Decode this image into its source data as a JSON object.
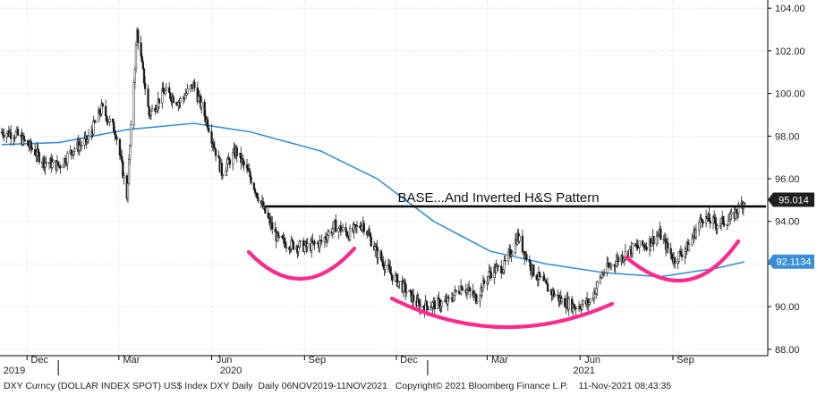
{
  "chart_data": {
    "type": "candlestick-line",
    "annotation": "BASE...And Inverted H&S Pattern",
    "y_ticks": [
      "104.00",
      "102.00",
      "100.00",
      "98.00",
      "96.00",
      "94.00",
      "92.00",
      "90.00",
      "88.00"
    ],
    "y_tick_values": [
      104,
      102,
      100,
      98,
      96,
      94,
      92,
      90,
      88
    ],
    "ylim": [
      87.7,
      104.3
    ],
    "x_month_labels": [
      "Dec",
      "Mar",
      "Jun",
      "Sep",
      "Dec",
      "Mar",
      "Jun",
      "Sep"
    ],
    "x_year_labels": [
      "2019",
      "2020",
      "2021"
    ],
    "series": [
      {
        "name": "DXY Daily",
        "x": [
          "2019-11-06",
          "2019-11-20",
          "2019-12-04",
          "2019-12-18",
          "2020-01-02",
          "2020-01-16",
          "2020-01-30",
          "2020-02-13",
          "2020-02-27",
          "2020-03-09",
          "2020-03-19",
          "2020-03-31",
          "2020-04-15",
          "2020-04-30",
          "2020-05-14",
          "2020-05-28",
          "2020-06-11",
          "2020-06-25",
          "2020-07-09",
          "2020-07-23",
          "2020-08-06",
          "2020-08-20",
          "2020-09-03",
          "2020-09-17",
          "2020-10-01",
          "2020-10-15",
          "2020-10-29",
          "2020-11-12",
          "2020-11-26",
          "2020-12-10",
          "2020-12-24",
          "2021-01-07",
          "2021-01-21",
          "2021-02-04",
          "2021-02-18",
          "2021-03-04",
          "2021-03-18",
          "2021-03-31",
          "2021-04-15",
          "2021-04-29",
          "2021-05-13",
          "2021-05-27",
          "2021-06-10",
          "2021-06-24",
          "2021-07-08",
          "2021-07-22",
          "2021-08-05",
          "2021-08-19",
          "2021-09-02",
          "2021-09-16",
          "2021-09-30",
          "2021-10-14",
          "2021-10-28",
          "2021-11-11"
        ],
        "values": [
          98.2,
          98.1,
          97.5,
          96.8,
          96.6,
          97.4,
          97.8,
          99.3,
          98.2,
          95.2,
          102.9,
          99.0,
          100.1,
          99.6,
          100.4,
          98.6,
          96.3,
          97.3,
          96.1,
          94.5,
          93.1,
          92.9,
          92.8,
          93.0,
          93.8,
          93.4,
          93.9,
          92.5,
          91.5,
          90.8,
          90.0,
          90.1,
          90.2,
          91.0,
          90.4,
          91.6,
          91.9,
          93.3,
          91.7,
          90.9,
          90.3,
          90.0,
          90.2,
          91.6,
          92.2,
          92.7,
          92.9,
          93.4,
          92.2,
          92.8,
          94.2,
          93.9,
          94.1,
          95.0
        ]
      },
      {
        "name": "Moving average",
        "x": [
          "2019-11-06",
          "2020-01-02",
          "2020-03-09",
          "2020-05-14",
          "2020-07-09",
          "2020-09-17",
          "2020-11-12",
          "2021-01-07",
          "2021-03-04",
          "2021-04-29",
          "2021-06-24",
          "2021-08-19",
          "2021-10-14",
          "2021-11-11"
        ],
        "values": [
          97.6,
          97.7,
          98.3,
          98.6,
          98.2,
          97.3,
          96.0,
          94.0,
          92.6,
          92.0,
          91.6,
          91.4,
          91.8,
          92.1
        ]
      }
    ],
    "resistance_level": 94.7,
    "last_value": "95.014",
    "ma_last_value": "92.1134",
    "colors": {
      "price": "#1a1a1a",
      "moving_average": "#3a8fd6",
      "resistance": "#000000",
      "arcs": "#ff2a8c",
      "last_label_bg": "#1f1f1f",
      "ma_label_bg": "#3a8fd6"
    }
  },
  "footer": {
    "left": "DXY Curncy (DOLLAR INDEX SPOT) US$ Index DXY Daily  Daily 06NOV2019-11NOV2021",
    "right": "Copyright© 2021 Bloomberg Finance L.P.    11-Nov-2021 08:43:35"
  }
}
